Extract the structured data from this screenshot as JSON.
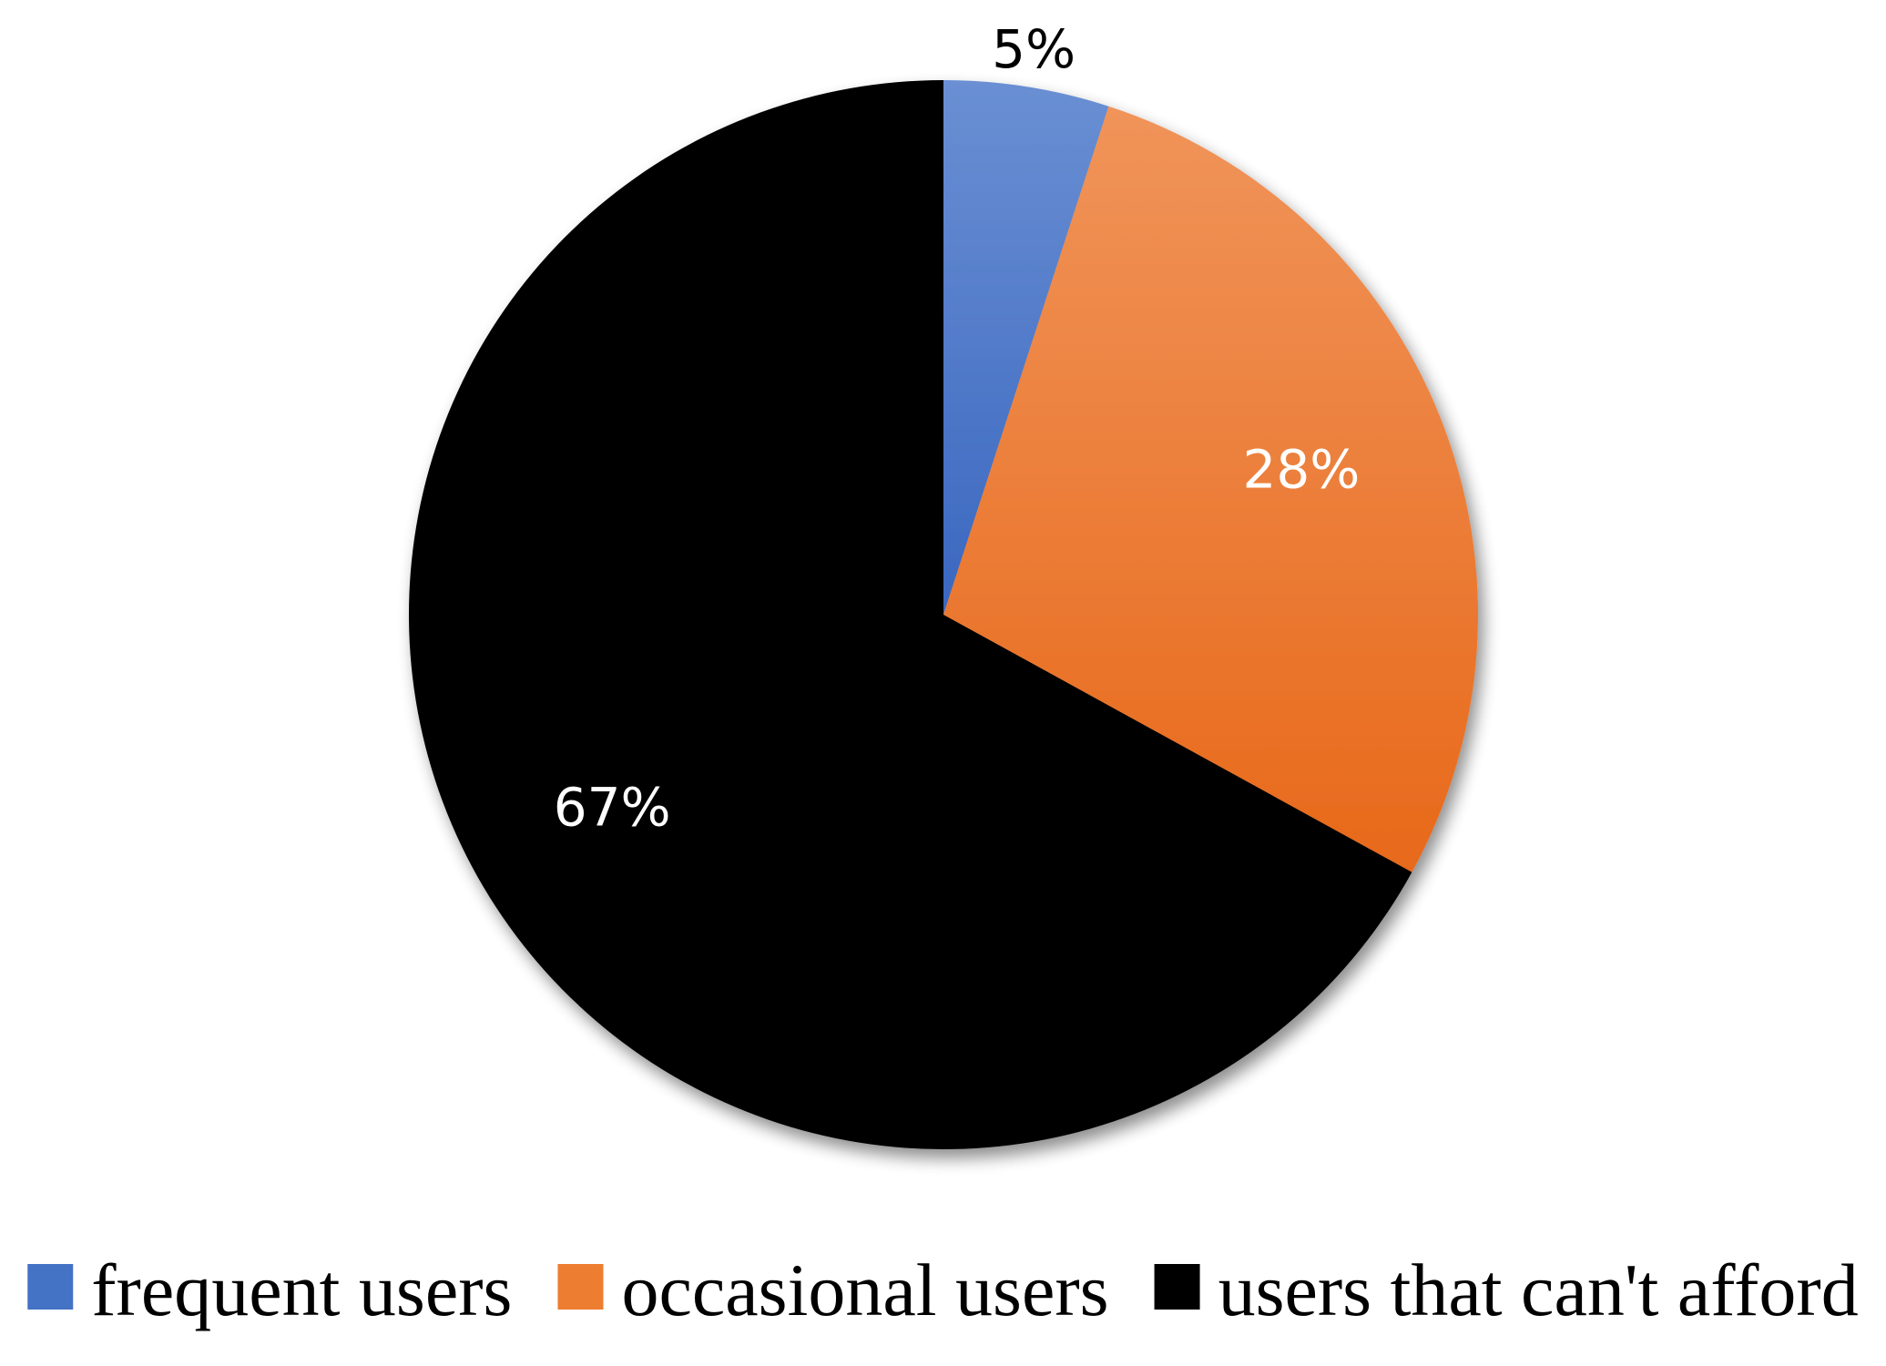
{
  "chart_data": {
    "type": "pie",
    "title": "",
    "categories": [
      "frequent users",
      "occasional users",
      "users that can't afford"
    ],
    "values": [
      5,
      28,
      67
    ],
    "data_labels": [
      "5%",
      "28%",
      "67%"
    ],
    "start_angle_deg": 0,
    "direction": "clockwise",
    "legend_position": "bottom",
    "colors": {
      "frequent users": "#4472c4",
      "occasional users": "#ed7d31",
      "users that can't afford": "#000000"
    }
  }
}
